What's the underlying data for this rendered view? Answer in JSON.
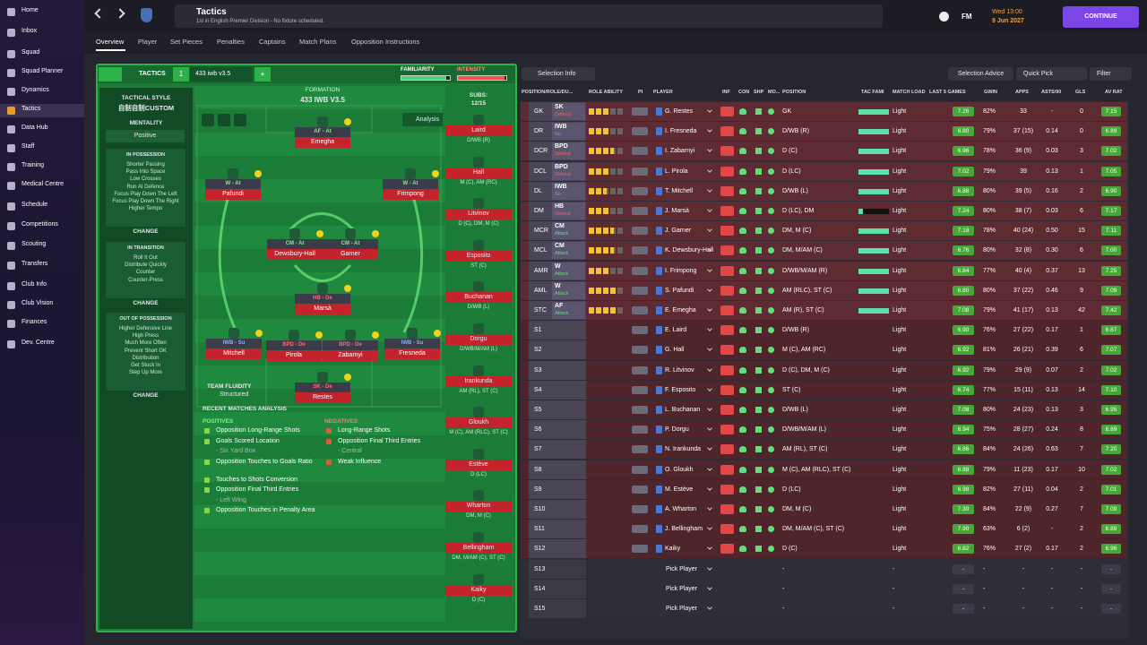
{
  "sidebar": {
    "items": [
      "Home",
      "Inbox",
      "Squad",
      "Squad Planner",
      "Dynamics",
      "Tactics",
      "Data Hub",
      "Staff",
      "Training",
      "Medical Centre",
      "Schedule",
      "Competitions",
      "Scouting",
      "Transfers",
      "Club Info",
      "Club Vision",
      "Finances",
      "Dev. Centre"
    ],
    "active": 5
  },
  "header": {
    "title": "Tactics",
    "subtitle": "1st in English Premier Division - No fixture scheduled.",
    "brand": "FM",
    "time": "Wed 13:00",
    "date": "9 Jun 2027",
    "continue": "CONTINUE"
  },
  "tabs": {
    "items": [
      "Overview",
      "Player",
      "Set Pieces",
      "Penalties",
      "Captains",
      "Match Plans",
      "Opposition Instructions"
    ],
    "active": 0
  },
  "tactic_bar": {
    "label": "TACTICS",
    "slot": "1",
    "name": "433 iwb v3.5",
    "add": "+",
    "familiarity_label": "FAMILIARITY",
    "familiarity": 92,
    "intensity_label": "INTENSITY",
    "intensity": 96
  },
  "style_panel": {
    "title": "TACTICAL STYLE",
    "style": "自制自制CUSTOM",
    "mentality_label": "MENTALITY",
    "mentality": "Positive",
    "sections": [
      {
        "title": "IN POSSESSION",
        "items": [
          "Shorter Passing",
          "Pass Into Space",
          "Low Crosses",
          "Run At Defence",
          "Focus Play Down The Left",
          "Focus Play Down The Right",
          "Higher Tempo"
        ],
        "button": "CHANGE"
      },
      {
        "title": "IN TRANSITION",
        "items": [
          "Roll It Out",
          "Distribute Quickly",
          "Counter",
          "Counter-Press"
        ],
        "button": "CHANGE"
      },
      {
        "title": "OUT OF POSSESSION",
        "items": [
          "Higher Defensive Line",
          "High Press",
          "Much More Often",
          "Prevent Short GK",
          "Distribution",
          "Get Stuck In",
          "Step Up More"
        ],
        "button": "CHANGE"
      }
    ]
  },
  "pitch": {
    "formation_label": "FORMATION",
    "formation": "433 IWB V3.5",
    "analysis": "Analysis",
    "subs_label": "SUBS:",
    "subs_count": "12/15",
    "fluidity_label": "TEAM FLUIDITY",
    "fluidity": "Structured",
    "players": [
      {
        "role": "AF - At",
        "name": "Emegha"
      },
      {
        "role": "W - At",
        "name": "Pafundi"
      },
      {
        "role": "W - At",
        "name": "Frimpong"
      },
      {
        "role": "CM - At",
        "name": "Dewsbury-Hall"
      },
      {
        "role": "CM - At",
        "name": "Garner"
      },
      {
        "role": "HB - De",
        "name": "Marsà"
      },
      {
        "role": "IWB - Su",
        "name": "Mitchell"
      },
      {
        "role": "BPD - De",
        "name": "Pirola"
      },
      {
        "role": "BPD - De",
        "name": "Zabarnyi"
      },
      {
        "role": "IWB - Su",
        "name": "Fresneda"
      },
      {
        "role": "SK - De",
        "name": "Restes"
      }
    ],
    "subs": [
      {
        "name": "Laird",
        "position": "D/WB (R)"
      },
      {
        "name": "Hall",
        "position": "M (C), AM (RC)"
      },
      {
        "name": "Litvinov",
        "position": "D (C), DM, M (C)"
      },
      {
        "name": "Esposito",
        "position": "ST (C)"
      },
      {
        "name": "Buchanan",
        "position": "D/WB (L)"
      },
      {
        "name": "Dorgu",
        "position": "D/WB/M/AM (L)"
      },
      {
        "name": "Irankunda",
        "position": "AM (RL), ST (C)"
      },
      {
        "name": "Gloukh",
        "position": "M (C), AM (RLC), ST (C)"
      },
      {
        "name": "Estève",
        "position": "D (LC)"
      },
      {
        "name": "Wharton",
        "position": "DM, M (C)"
      },
      {
        "name": "Bellingham",
        "position": "DM, M/AM (C), ST (C)"
      },
      {
        "name": "Kaiky",
        "position": "D (C)"
      }
    ]
  },
  "analysis": {
    "title": "RECENT MATCHES ANALYSIS",
    "positives_label": "POSITIVES",
    "positives": [
      {
        "text": "Opposition Long-Range Shots"
      },
      {
        "text": "Goals Scored Location",
        "detail": "- Six Yard Box"
      },
      {
        "text": "Opposition Touches to Goals Ratio"
      },
      {
        "text": "Touches to Shots Conversion"
      },
      {
        "text": "Opposition Final Third Entries",
        "detail": "- Left Wing"
      },
      {
        "text": "Opposition Touches in Penalty Area"
      }
    ],
    "negatives_label": "NEGATIVES",
    "negatives": [
      {
        "text": "Long-Range Shots"
      },
      {
        "text": "Opposition Final Third Entries",
        "detail": "- Central"
      },
      {
        "text": "Weak Influence"
      }
    ]
  },
  "selection": {
    "buttons": {
      "info": "Selection Info",
      "advice": "Selection Advice",
      "quick": "Quick Pick",
      "filter": "Filter"
    },
    "columns": [
      "POSITION/ROLE/DU...",
      "ROLE ABILITY",
      "PI",
      "PLAYER",
      "INF",
      "CON",
      "SHP",
      "MO...",
      "POSITION",
      "TAC FAMI",
      "MATCH LOAD",
      "LAST 5 GAMES",
      "GWIN",
      "APPS",
      "ASTS/90",
      "GLS",
      "AV RAT"
    ],
    "rows": [
      {
        "slot": "GK",
        "role": "SK",
        "duty": "Defend",
        "stars": 3,
        "player": "G. Restes",
        "position": "GK",
        "tac_fami": 100,
        "match_load": "Light",
        "form": "7.26",
        "gwin": "82%",
        "apps": "33",
        "asts90": "-",
        "gls": "0",
        "av_rat": "7.15"
      },
      {
        "slot": "DR",
        "role": "IWB",
        "duty": "Su",
        "stars": 3,
        "player": "I. Fresneda",
        "position": "D/WB (R)",
        "tac_fami": 100,
        "match_load": "Light",
        "form": "6.80",
        "gwin": "79%",
        "apps": "37 (15)",
        "asts90": "0.14",
        "gls": "0",
        "av_rat": "6.89"
      },
      {
        "slot": "DCR",
        "role": "BPD",
        "duty": "Defend",
        "stars": 3.5,
        "player": "I. Zabarnyi",
        "position": "D (C)",
        "tac_fami": 100,
        "match_load": "Light",
        "form": "6.96",
        "gwin": "78%",
        "apps": "36 (9)",
        "asts90": "0.03",
        "gls": "3",
        "av_rat": "7.02"
      },
      {
        "slot": "DCL",
        "role": "BPD",
        "duty": "Defend",
        "stars": 3,
        "player": "L. Pirola",
        "position": "D (LC)",
        "tac_fami": 100,
        "match_load": "Light",
        "form": "7.02",
        "gwin": "79%",
        "apps": "39",
        "asts90": "0.13",
        "gls": "1",
        "av_rat": "7.05"
      },
      {
        "slot": "DL",
        "role": "IWB",
        "duty": "Su",
        "stars": 2.5,
        "player": "T. Mitchell",
        "position": "D/WB (L)",
        "tac_fami": 100,
        "match_load": "Light",
        "form": "6.88",
        "gwin": "80%",
        "apps": "39 (5)",
        "asts90": "0.16",
        "gls": "2",
        "av_rat": "6.90"
      },
      {
        "slot": "DM",
        "role": "HB",
        "duty": "Defend",
        "stars": 3,
        "player": "J. Marsà",
        "position": "D (LC), DM",
        "tac_fami": 15,
        "match_load": "Light",
        "form": "7.24",
        "gwin": "80%",
        "apps": "38 (7)",
        "asts90": "0.03",
        "gls": "6",
        "av_rat": "7.17"
      },
      {
        "slot": "MCR",
        "role": "CM",
        "duty": "Attack",
        "stars": 3.5,
        "player": "J. Garner",
        "position": "DM, M (C)",
        "tac_fami": 100,
        "match_load": "Light",
        "form": "7.18",
        "gwin": "78%",
        "apps": "40 (24)",
        "asts90": "0.50",
        "gls": "15",
        "av_rat": "7.11"
      },
      {
        "slot": "MCL",
        "role": "CM",
        "duty": "Attack",
        "stars": 3.5,
        "player": "K. Dewsbury-Hall",
        "position": "DM, M/AM (C)",
        "tac_fami": 100,
        "match_load": "Light",
        "form": "6.76",
        "gwin": "80%",
        "apps": "32 (8)",
        "asts90": "0.30",
        "gls": "6",
        "av_rat": "7.00"
      },
      {
        "slot": "AMR",
        "role": "W",
        "duty": "Attack",
        "stars": 3,
        "player": "I. Frimpong",
        "position": "D/WB/M/AM (R)",
        "tac_fami": 100,
        "match_load": "Light",
        "form": "6.84",
        "gwin": "77%",
        "apps": "40 (4)",
        "asts90": "0.37",
        "gls": "13",
        "av_rat": "7.25"
      },
      {
        "slot": "AML",
        "role": "W",
        "duty": "Attack",
        "stars": 4,
        "player": "S. Pafundi",
        "position": "AM (RLC), ST (C)",
        "tac_fami": 100,
        "match_load": "Light",
        "form": "6.80",
        "gwin": "80%",
        "apps": "37 (22)",
        "asts90": "0.46",
        "gls": "9",
        "av_rat": "7.09"
      },
      {
        "slot": "STC",
        "role": "AF",
        "duty": "Attack",
        "stars": 4,
        "player": "E. Emegha",
        "position": "AM (R), ST (C)",
        "tac_fami": 100,
        "match_load": "Light",
        "form": "7.08",
        "gwin": "79%",
        "apps": "41 (17)",
        "asts90": "0.13",
        "gls": "42",
        "av_rat": "7.42"
      },
      {
        "slot": "S1",
        "player": "E. Laird",
        "position": "D/WB (R)",
        "match_load": "Light",
        "form": "6.90",
        "gwin": "76%",
        "apps": "27 (22)",
        "asts90": "0.17",
        "gls": "1",
        "av_rat": "6.87"
      },
      {
        "slot": "S2",
        "player": "G. Hall",
        "position": "M (C), AM (RC)",
        "match_load": "Light",
        "form": "6.92",
        "gwin": "81%",
        "apps": "26 (21)",
        "asts90": "0.39",
        "gls": "6",
        "av_rat": "7.07"
      },
      {
        "slot": "S3",
        "player": "R. Litvinov",
        "position": "D (C), DM, M (C)",
        "match_load": "Light",
        "form": "6.92",
        "gwin": "79%",
        "apps": "29 (9)",
        "asts90": "0.07",
        "gls": "2",
        "av_rat": "7.02"
      },
      {
        "slot": "S4",
        "player": "F. Esposito",
        "position": "ST (C)",
        "match_load": "Light",
        "form": "6.74",
        "gwin": "77%",
        "apps": "15 (11)",
        "asts90": "0.13",
        "gls": "14",
        "av_rat": "7.10"
      },
      {
        "slot": "S5",
        "player": "L. Buchanan",
        "position": "D/WB (L)",
        "match_load": "Light",
        "form": "7.08",
        "gwin": "80%",
        "apps": "24 (23)",
        "asts90": "0.13",
        "gls": "3",
        "av_rat": "6.95"
      },
      {
        "slot": "S6",
        "player": "P. Dorgu",
        "position": "D/WB/M/AM (L)",
        "match_load": "Light",
        "form": "6.94",
        "gwin": "75%",
        "apps": "28 (27)",
        "asts90": "0.24",
        "gls": "8",
        "av_rat": "6.89"
      },
      {
        "slot": "S7",
        "player": "N. Irankunda",
        "position": "AM (RL), ST (C)",
        "match_load": "Light",
        "form": "6.86",
        "gwin": "84%",
        "apps": "24 (26)",
        "asts90": "0.63",
        "gls": "7",
        "av_rat": "7.20"
      },
      {
        "slot": "S8",
        "player": "O. Gloukh",
        "position": "M (C), AM (RLC), ST (C)",
        "match_load": "Light",
        "form": "6.88",
        "gwin": "79%",
        "apps": "11 (23)",
        "asts90": "0.17",
        "gls": "10",
        "av_rat": "7.02"
      },
      {
        "slot": "S9",
        "player": "M. Estève",
        "position": "D (LC)",
        "match_load": "Light",
        "form": "6.98",
        "gwin": "82%",
        "apps": "27 (11)",
        "asts90": "0.04",
        "gls": "2",
        "av_rat": "7.01"
      },
      {
        "slot": "S10",
        "player": "A. Wharton",
        "position": "DM, M (C)",
        "match_load": "Light",
        "form": "7.30",
        "gwin": "84%",
        "apps": "22 (9)",
        "asts90": "0.27",
        "gls": "7",
        "av_rat": "7.09"
      },
      {
        "slot": "S11",
        "player": "J. Bellingham",
        "position": "DM, M/AM (C), ST (C)",
        "match_load": "Light",
        "form": "7.90",
        "gwin": "63%",
        "apps": "6 (2)",
        "asts90": "-",
        "gls": "2",
        "av_rat": "6.89"
      },
      {
        "slot": "S12",
        "player": "Kaiky",
        "position": "D (C)",
        "match_load": "Light",
        "form": "6.82",
        "gwin": "76%",
        "apps": "27 (2)",
        "asts90": "0.17",
        "gls": "2",
        "av_rat": "6.96"
      },
      {
        "slot": "S13",
        "player": "Pick Player",
        "position": "-",
        "match_load": "-",
        "form": "-",
        "gwin": "-",
        "apps": "-",
        "asts90": "-",
        "gls": "-",
        "av_rat": "-"
      },
      {
        "slot": "S14",
        "player": "Pick Player",
        "position": "-",
        "match_load": "-",
        "form": "-",
        "gwin": "-",
        "apps": "-",
        "asts90": "-",
        "gls": "-",
        "av_rat": "-"
      },
      {
        "slot": "S15",
        "player": "Pick Player",
        "position": "-",
        "match_load": "-",
        "form": "-",
        "gwin": "-",
        "apps": "-",
        "asts90": "-",
        "gls": "-",
        "av_rat": "-"
      }
    ]
  }
}
